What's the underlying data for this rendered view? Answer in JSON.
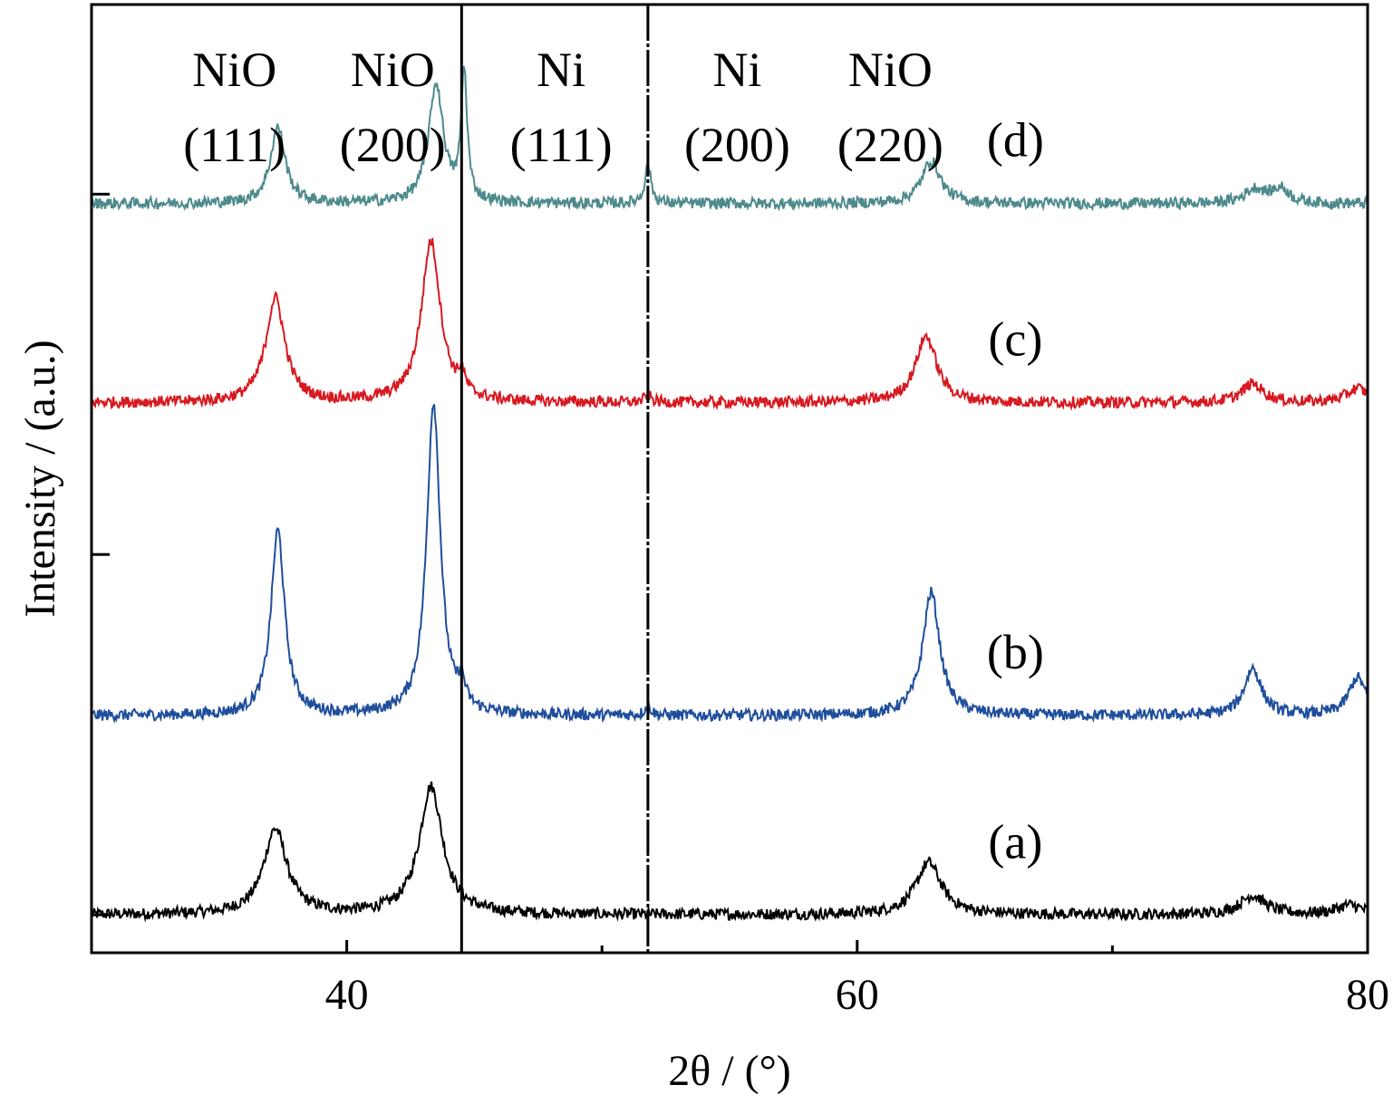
{
  "chart_data": {
    "type": "line",
    "title": "",
    "xlabel": "2θ / (°)",
    "ylabel": "Intensity / (a.u.)",
    "xlim": [
      30,
      80
    ],
    "ylim": [
      0,
      100
    ],
    "x_ticks": [
      40,
      60,
      80
    ],
    "x_minor_ticks": [
      50,
      70
    ],
    "y_ticks": [
      4,
      42,
      80
    ],
    "grid": false,
    "legend": "none",
    "reference_lines": [
      {
        "x": 44.5,
        "style": "solid"
      },
      {
        "x": 51.8,
        "style": "dashed"
      }
    ],
    "peak_annotations": [
      {
        "x": 35.6,
        "line1": "NiO",
        "line2": "(111)"
      },
      {
        "x": 41.8,
        "line1": "NiO",
        "line2": "(200)"
      },
      {
        "x": 48.4,
        "line1": "Ni",
        "line2": "(111)"
      },
      {
        "x": 55.3,
        "line1": "Ni",
        "line2": "(200)"
      },
      {
        "x": 61.3,
        "line1": "NiO",
        "line2": "(220)"
      }
    ],
    "series": [
      {
        "name": "(a)",
        "color": "#000000",
        "baseline": 4,
        "label_x": 66.2,
        "label_y": 10,
        "peaks": [
          {
            "x": 37.2,
            "height": 9,
            "width": 0.55
          },
          {
            "x": 43.3,
            "height": 13.5,
            "width": 0.55
          },
          {
            "x": 62.8,
            "height": 5.5,
            "width": 0.6
          },
          {
            "x": 75.5,
            "height": 2,
            "width": 0.6
          },
          {
            "x": 79.3,
            "height": 1,
            "width": 0.6
          }
        ]
      },
      {
        "name": "(b)",
        "color": "#1f4e9c",
        "baseline": 25,
        "label_x": 66.2,
        "label_y": 30,
        "peaks": [
          {
            "x": 37.3,
            "height": 19.5,
            "width": 0.32
          },
          {
            "x": 43.4,
            "height": 33,
            "width": 0.32
          },
          {
            "x": 44.5,
            "height": 2.5,
            "width": 0.15
          },
          {
            "x": 51.8,
            "height": 1,
            "width": 0.15
          },
          {
            "x": 62.9,
            "height": 13,
            "width": 0.4
          },
          {
            "x": 75.5,
            "height": 5,
            "width": 0.4
          },
          {
            "x": 79.6,
            "height": 4,
            "width": 0.4
          }
        ]
      },
      {
        "name": "(c)",
        "color": "#d71920",
        "baseline": 58,
        "label_x": 66.2,
        "label_y": 63,
        "peaks": [
          {
            "x": 37.2,
            "height": 11,
            "width": 0.45
          },
          {
            "x": 43.3,
            "height": 17,
            "width": 0.45
          },
          {
            "x": 44.5,
            "height": 2,
            "width": 0.15
          },
          {
            "x": 51.8,
            "height": 0.8,
            "width": 0.15
          },
          {
            "x": 62.7,
            "height": 7,
            "width": 0.5
          },
          {
            "x": 75.5,
            "height": 2,
            "width": 0.5
          },
          {
            "x": 79.6,
            "height": 1.5,
            "width": 0.5
          }
        ]
      },
      {
        "name": "(d)",
        "color": "#4e8a8c",
        "baseline": 79,
        "label_x": 66.2,
        "label_y": 84,
        "peaks": [
          {
            "x": 37.3,
            "height": 8,
            "width": 0.35
          },
          {
            "x": 43.5,
            "height": 12.5,
            "width": 0.35
          },
          {
            "x": 44.6,
            "height": 13.5,
            "width": 0.14
          },
          {
            "x": 51.8,
            "height": 4,
            "width": 0.15
          },
          {
            "x": 62.9,
            "height": 4.5,
            "width": 0.45
          },
          {
            "x": 75.6,
            "height": 1.5,
            "width": 0.5
          },
          {
            "x": 76.6,
            "height": 1.5,
            "width": 0.4
          }
        ]
      }
    ]
  }
}
